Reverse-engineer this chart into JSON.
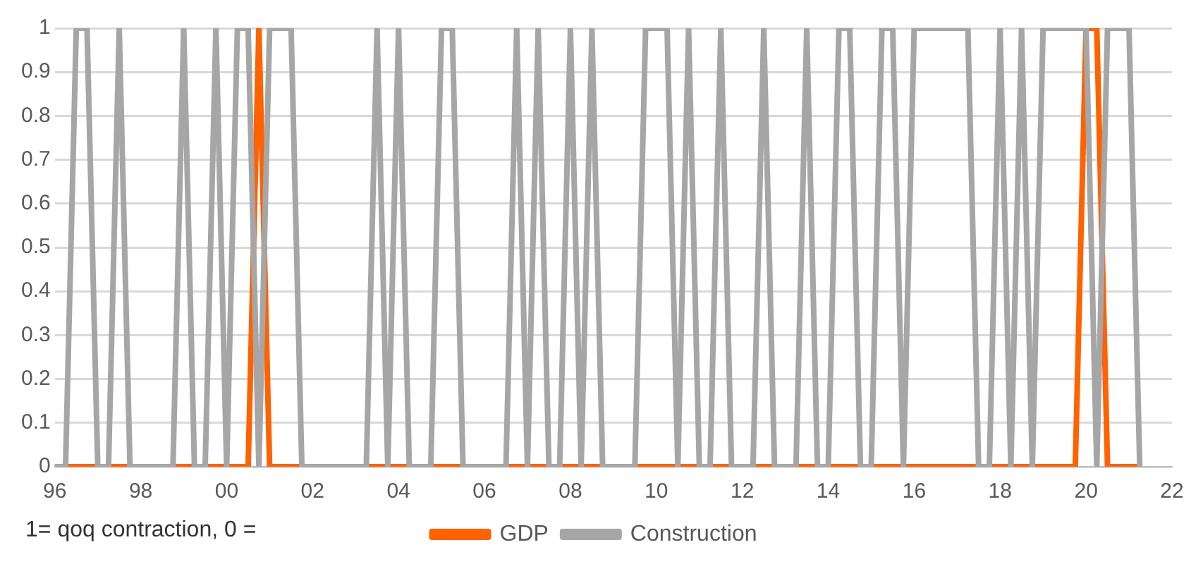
{
  "chart_data": {
    "type": "line",
    "annotations": [
      "1= qoq contraction, 0 ="
    ],
    "x": [
      1996,
      1996.25,
      1996.5,
      1996.75,
      1997,
      1997.25,
      1997.5,
      1997.75,
      1998,
      1998.25,
      1998.5,
      1998.75,
      1999,
      1999.25,
      1999.5,
      1999.75,
      2000,
      2000.25,
      2000.5,
      2000.75,
      2001,
      2001.25,
      2001.5,
      2001.75,
      2002,
      2002.25,
      2002.5,
      2002.75,
      2003,
      2003.25,
      2003.5,
      2003.75,
      2004,
      2004.25,
      2004.5,
      2004.75,
      2005,
      2005.25,
      2005.5,
      2005.75,
      2006,
      2006.25,
      2006.5,
      2006.75,
      2007,
      2007.25,
      2007.5,
      2007.75,
      2008,
      2008.25,
      2008.5,
      2008.75,
      2009,
      2009.25,
      2009.5,
      2009.75,
      2010,
      2010.25,
      2010.5,
      2010.75,
      2011,
      2011.25,
      2011.5,
      2011.75,
      2012,
      2012.25,
      2012.5,
      2012.75,
      2013,
      2013.25,
      2013.5,
      2013.75,
      2014,
      2014.25,
      2014.5,
      2014.75,
      2015,
      2015.25,
      2015.5,
      2015.75,
      2016,
      2016.25,
      2016.5,
      2016.75,
      2017,
      2017.25,
      2017.5,
      2017.75,
      2018,
      2018.25,
      2018.5,
      2018.75,
      2019,
      2019.25,
      2019.5,
      2019.75,
      2020,
      2020.25,
      2020.5,
      2020.75,
      2021,
      2021.25
    ],
    "series": [
      {
        "name": "GDP",
        "color": "#ff6200",
        "values": [
          0,
          0,
          0,
          0,
          0,
          0,
          0,
          0,
          0,
          0,
          0,
          0,
          0,
          0,
          0,
          0,
          0,
          0,
          0,
          1,
          0,
          0,
          0,
          0,
          0,
          0,
          0,
          0,
          0,
          0,
          0,
          0,
          0,
          0,
          0,
          0,
          0,
          0,
          0,
          0,
          0,
          0,
          0,
          0,
          0,
          0,
          0,
          0,
          0,
          0,
          0,
          0,
          0,
          0,
          0,
          0,
          0,
          0,
          0,
          0,
          0,
          0,
          0,
          0,
          0,
          0,
          0,
          0,
          0,
          0,
          0,
          0,
          0,
          0,
          0,
          0,
          0,
          0,
          0,
          0,
          0,
          0,
          0,
          0,
          0,
          0,
          0,
          0,
          0,
          0,
          0,
          0,
          0,
          0,
          0,
          0,
          1,
          1,
          0,
          0,
          0,
          0
        ]
      },
      {
        "name": "Construction",
        "color": "#a6a6a6",
        "values": [
          0,
          0,
          1,
          1,
          0,
          0,
          1,
          0,
          0,
          0,
          0,
          0,
          1,
          0,
          0,
          1,
          0,
          1,
          1,
          0,
          1,
          1,
          1,
          0,
          0,
          0,
          0,
          0,
          0,
          0,
          1,
          0,
          1,
          0,
          0,
          0,
          1,
          1,
          0,
          0,
          0,
          0,
          0,
          1,
          0,
          1,
          0,
          0,
          1,
          0,
          1,
          0,
          0,
          0,
          0,
          1,
          1,
          1,
          0,
          1,
          0,
          0,
          1,
          0,
          0,
          0,
          1,
          0,
          0,
          0,
          1,
          0,
          0,
          1,
          1,
          0,
          0,
          1,
          1,
          0,
          1,
          1,
          1,
          1,
          1,
          1,
          0,
          0,
          1,
          0,
          1,
          0,
          1,
          1,
          1,
          1,
          1,
          0,
          1,
          1,
          1,
          0
        ]
      }
    ],
    "xlim": [
      1996,
      2022
    ],
    "xticks": [
      {
        "value": 1996,
        "label": "96"
      },
      {
        "value": 1998,
        "label": "98"
      },
      {
        "value": 2000,
        "label": "00"
      },
      {
        "value": 2002,
        "label": "02"
      },
      {
        "value": 2004,
        "label": "04"
      },
      {
        "value": 2006,
        "label": "06"
      },
      {
        "value": 2008,
        "label": "08"
      },
      {
        "value": 2010,
        "label": "10"
      },
      {
        "value": 2012,
        "label": "12"
      },
      {
        "value": 2014,
        "label": "14"
      },
      {
        "value": 2016,
        "label": "16"
      },
      {
        "value": 2018,
        "label": "18"
      },
      {
        "value": 2020,
        "label": "20"
      },
      {
        "value": 2022,
        "label": "22"
      }
    ],
    "ylim": [
      0,
      1
    ],
    "yticks": [
      0,
      0.1,
      0.2,
      0.3,
      0.4,
      0.5,
      0.6,
      0.7,
      0.8,
      0.9,
      1
    ],
    "grid": "y",
    "legend": "bottom",
    "marker": "none",
    "line_style": "solid"
  }
}
